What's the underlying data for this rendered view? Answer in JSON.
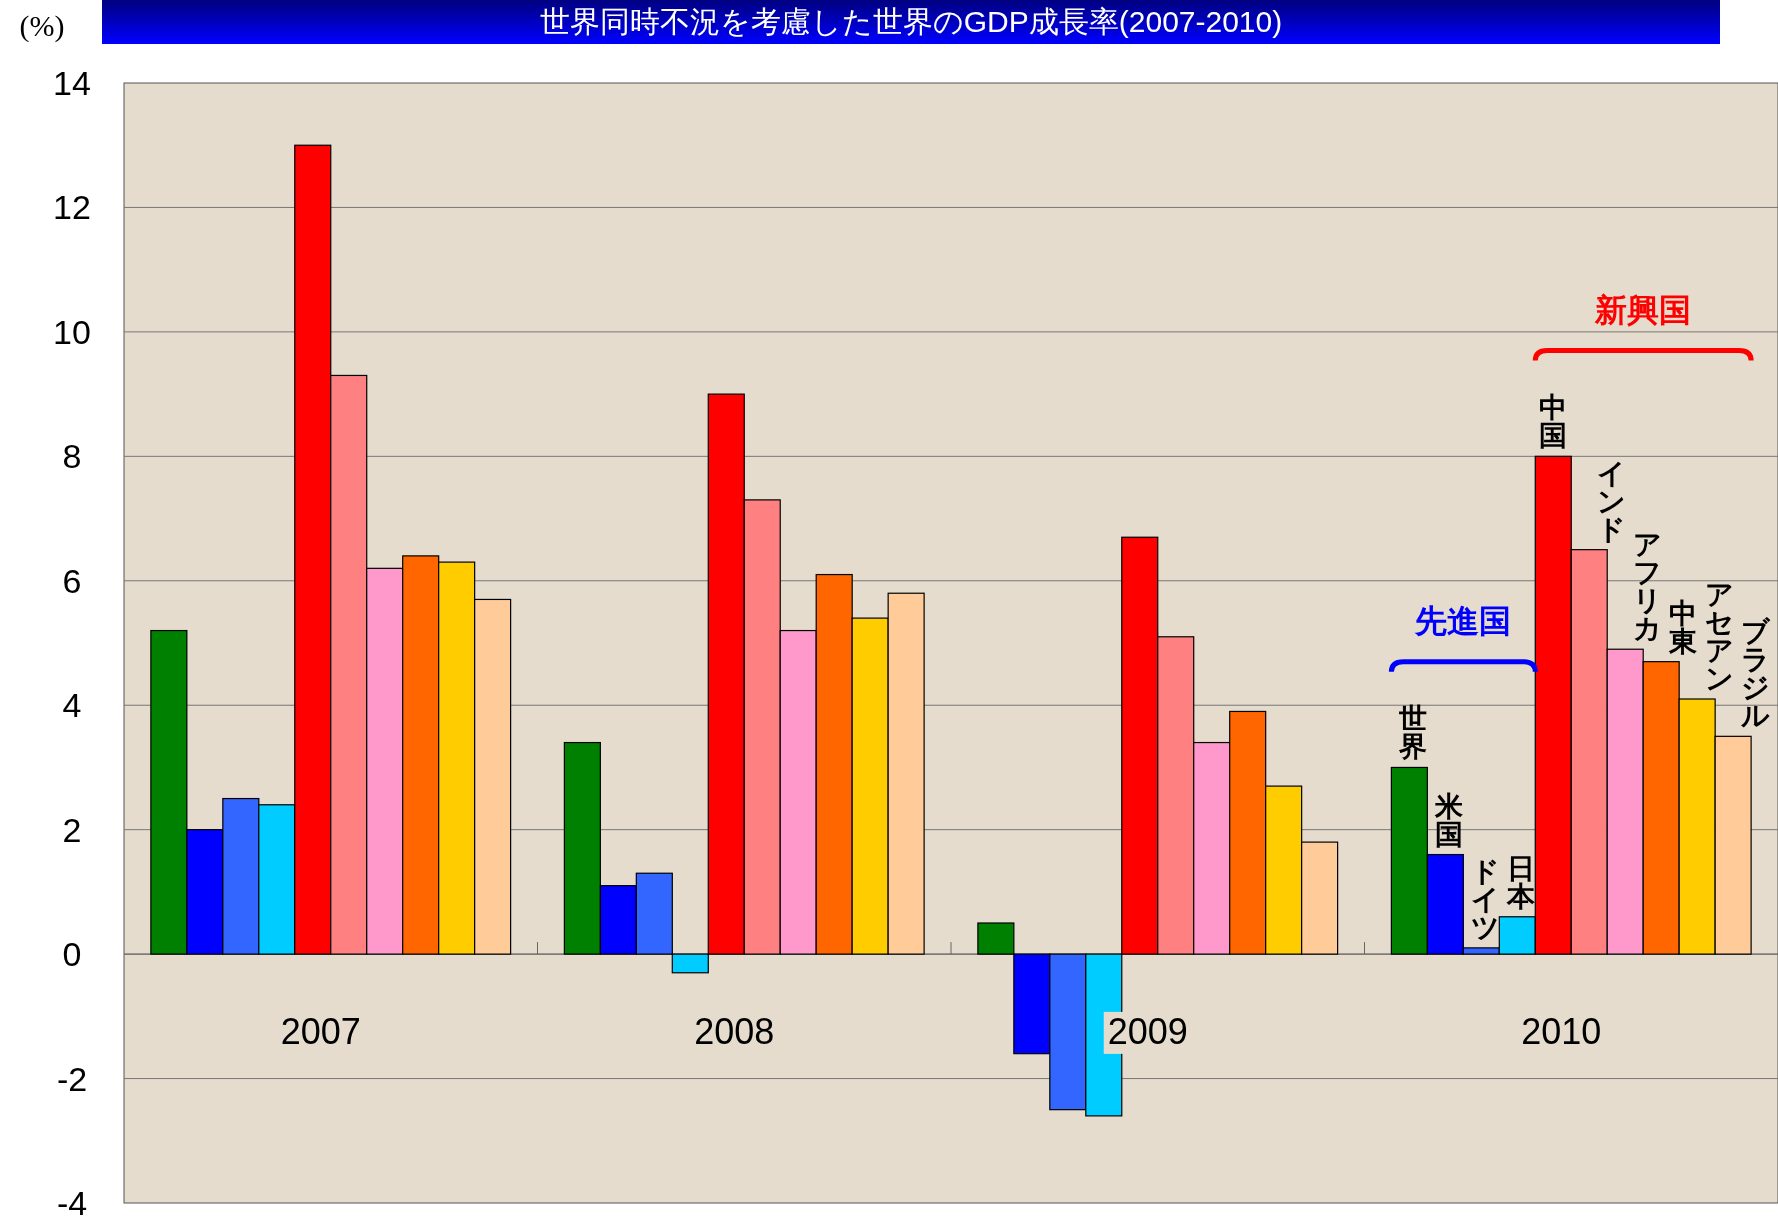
{
  "chart_data": {
    "type": "bar",
    "title": "世界同時不況を考慮した世界のGDP成長率(2007-2010)",
    "ylabel": "(%)",
    "categories": [
      "2007",
      "2008",
      "2009",
      "2010"
    ],
    "series": [
      {
        "name": "世界",
        "color": "#008000",
        "values": [
          5.2,
          3.4,
          0.5,
          3.0
        ]
      },
      {
        "name": "米国",
        "color": "#0000ff",
        "values": [
          2.0,
          1.1,
          -1.6,
          1.6
        ]
      },
      {
        "name": "ドイツ",
        "color": "#3366ff",
        "values": [
          2.5,
          1.3,
          -2.5,
          0.1
        ]
      },
      {
        "name": "日本",
        "color": "#00ccff",
        "values": [
          2.4,
          -0.3,
          -2.6,
          0.6
        ]
      },
      {
        "name": "中国",
        "color": "#ff0000",
        "values": [
          13.0,
          9.0,
          6.7,
          8.0
        ]
      },
      {
        "name": "インド",
        "color": "#ff8080",
        "values": [
          9.3,
          7.3,
          5.1,
          6.5
        ]
      },
      {
        "name": "アフリカ",
        "color": "#ff99cc",
        "values": [
          6.2,
          5.2,
          3.4,
          4.9
        ]
      },
      {
        "name": "中東",
        "color": "#ff6600",
        "values": [
          6.4,
          6.1,
          3.9,
          4.7
        ]
      },
      {
        "name": "アセアン",
        "color": "#ffcc00",
        "values": [
          6.3,
          5.4,
          2.7,
          4.1
        ]
      },
      {
        "name": "ブラジル",
        "color": "#ffcc99",
        "values": [
          5.7,
          5.8,
          1.8,
          3.5
        ]
      }
    ],
    "annotations": [
      "先進国",
      "新興国"
    ],
    "ylim": [
      -4,
      14
    ],
    "yticks": [
      -4,
      -2,
      0,
      2,
      4,
      6,
      8,
      10,
      12,
      14
    ],
    "grid": "y"
  }
}
